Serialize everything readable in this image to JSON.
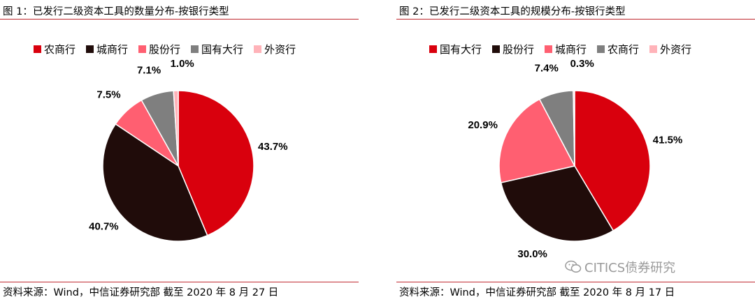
{
  "chart_data": [
    {
      "type": "pie",
      "title": "图 1：已发行二级资本工具的数量分布-按银行类型",
      "categories": [
        "农商行",
        "城商行",
        "股份行",
        "国有大行",
        "外资行"
      ],
      "values": [
        43.7,
        40.7,
        7.5,
        7.1,
        1.0
      ],
      "labels": [
        "43.7%",
        "40.7%",
        "7.5%",
        "7.1%",
        "1.0%"
      ],
      "colors": [
        "#d9000d",
        "#200c0a",
        "#ff5f71",
        "#7f7f7f",
        "#ffb3b9"
      ],
      "legend_position": "top",
      "source": "资料来源：Wind，中信证券研究部  截至 2020 年 8 月 27 日"
    },
    {
      "type": "pie",
      "title": "图 2：已发行二级资本工具的规模分布-按银行类型",
      "categories": [
        "国有大行",
        "股份行",
        "城商行",
        "农商行",
        "外资行"
      ],
      "values": [
        41.5,
        30.0,
        20.9,
        7.4,
        0.3
      ],
      "labels": [
        "41.5%",
        "30.0%",
        "20.9%",
        "7.4%",
        "0.3%"
      ],
      "colors": [
        "#d9000d",
        "#200c0a",
        "#ff5f71",
        "#7f7f7f",
        "#ffb3b9"
      ],
      "legend_position": "top",
      "source": "资料来源：Wind，中信证券研究部  截至 2020 年 8 月 17 日"
    }
  ],
  "watermark": {
    "text": "CITICS债券研究",
    "icon": "wechat-icon"
  }
}
